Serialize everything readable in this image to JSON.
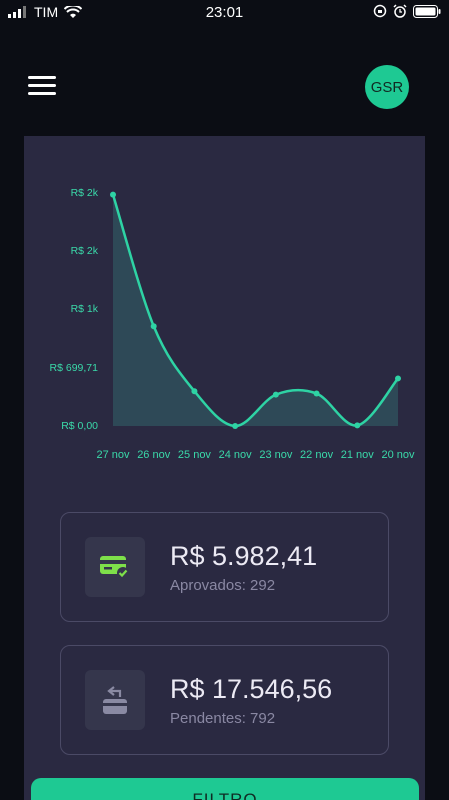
{
  "status_bar": {
    "carrier": "TIM",
    "time": "23:01"
  },
  "header": {
    "avatar_initials": "GSR"
  },
  "chart_data": {
    "type": "area",
    "x": [
      "27 nov",
      "26 nov",
      "25 nov",
      "24 nov",
      "23 nov",
      "22 nov",
      "21 nov",
      "20 nov"
    ],
    "y_tick_labels": [
      "R$ 2k",
      "R$ 2k",
      "R$ 1k",
      "R$ 699,71",
      "R$ 0,00"
    ],
    "values": [
      1995,
      860,
      300,
      0,
      270,
      280,
      5,
      410
    ],
    "ylim": [
      0,
      2000
    ],
    "colors": {
      "line": "#2ed3a4",
      "fill": "#2f4f5c",
      "tick": "#3ad9a9"
    }
  },
  "cards": [
    {
      "icon": "card-check-icon",
      "value": "R$ 5.982,41",
      "subtitle": "Aprovados: 292",
      "accent": "#7ee04a"
    },
    {
      "icon": "card-return-icon",
      "value": "R$ 17.546,56",
      "subtitle": "Pendentes: 792",
      "accent": "#8a8aa3"
    }
  ],
  "filter_button": {
    "label": "FILTRO"
  }
}
